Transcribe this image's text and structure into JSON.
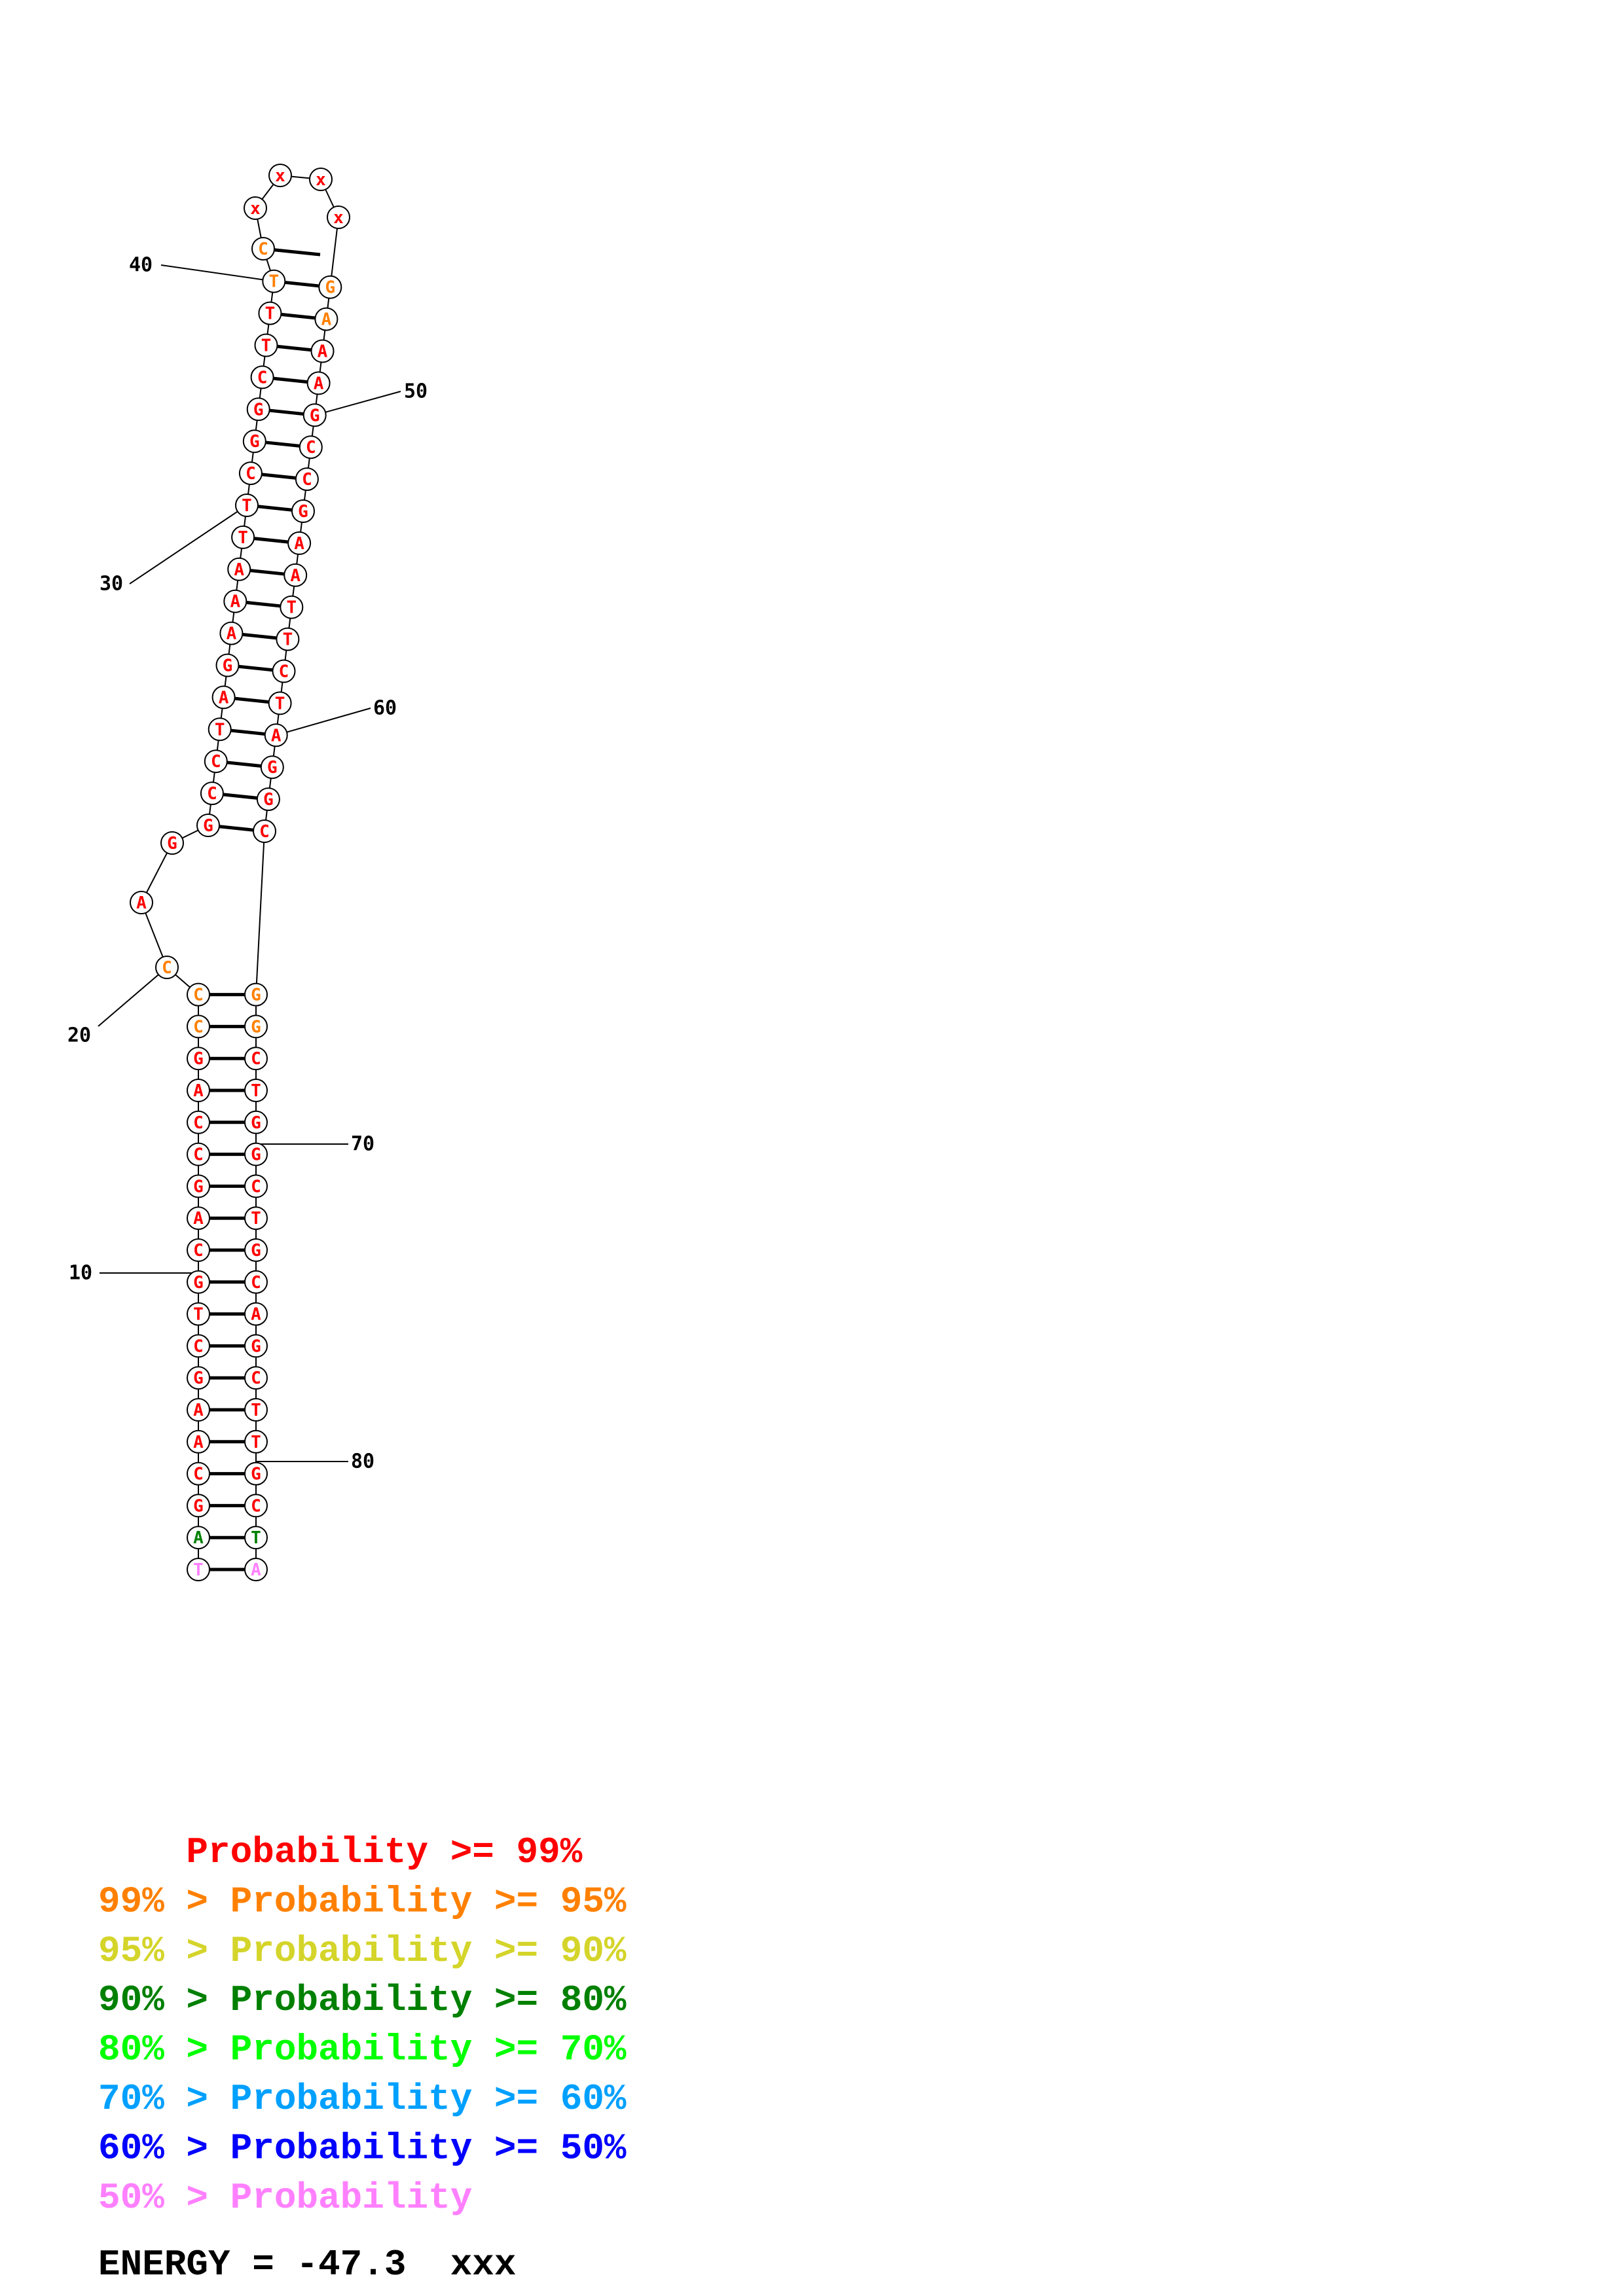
{
  "structure": {
    "left_arm": [
      "T",
      "A",
      "G",
      "C",
      "A",
      "A",
      "G",
      "C",
      "T",
      "G",
      "C",
      "A",
      "G",
      "C",
      "C",
      "A",
      "G",
      "C",
      "C"
    ],
    "left_colors": [
      "pink",
      "green",
      "red",
      "red",
      "red",
      "red",
      "red",
      "red",
      "red",
      "red",
      "red",
      "red",
      "red",
      "red",
      "red",
      "red",
      "red",
      "orange",
      "orange"
    ],
    "right_arm": [
      "A",
      "T",
      "C",
      "G",
      "T",
      "T",
      "C",
      "G",
      "A",
      "C",
      "G",
      "T",
      "C",
      "G",
      "G",
      "T",
      "C",
      "G",
      "G"
    ],
    "right_colors": [
      "pink",
      "green",
      "red",
      "red",
      "red",
      "red",
      "red",
      "red",
      "red",
      "red",
      "red",
      "red",
      "red",
      "red",
      "red",
      "red",
      "red",
      "orange",
      "orange"
    ],
    "loop_bases": [
      "C",
      "A",
      "G"
    ],
    "loop_colors": [
      "orange",
      "red",
      "red"
    ],
    "upper_left": [
      "G",
      "C",
      "C",
      "T",
      "A",
      "G",
      "A",
      "A",
      "A",
      "T",
      "T",
      "C",
      "G",
      "G",
      "C",
      "T",
      "T",
      "T"
    ],
    "upper_left_colors": [
      "red",
      "red",
      "red",
      "red",
      "red",
      "red",
      "red",
      "red",
      "red",
      "red",
      "red",
      "red",
      "red",
      "red",
      "red",
      "red",
      "red",
      "orange"
    ],
    "upper_right": [
      "C",
      "G",
      "G",
      "A",
      "T",
      "C",
      "T",
      "T",
      "A",
      "A",
      "G",
      "C",
      "C",
      "G",
      "A",
      "A",
      "A",
      "G"
    ],
    "upper_right_colors": [
      "red",
      "red",
      "red",
      "red",
      "red",
      "red",
      "red",
      "red",
      "red",
      "red",
      "red",
      "red",
      "red",
      "red",
      "red",
      "red",
      "orange",
      "orange"
    ],
    "hairpin": [
      "C",
      "x",
      "x",
      "x",
      "x"
    ],
    "hairpin_colors": [
      "orange",
      "red",
      "red",
      "red",
      "red"
    ]
  },
  "position_labels": [
    "10",
    "20",
    "30",
    "40",
    "50",
    "60",
    "70",
    "80"
  ],
  "colors": {
    "red": "#ff0000",
    "orange": "#ff8000",
    "yellow": "#d4d42a",
    "green": "#008000",
    "lime": "#00ff00",
    "cyan": "#00a0ff",
    "blue": "#0000ff",
    "pink": "#ff80ff"
  },
  "legend": [
    {
      "text": "    Probability >= 99%",
      "color": "red"
    },
    {
      "text": "99% > Probability >= 95%",
      "color": "orange"
    },
    {
      "text": "95% > Probability >= 90%",
      "color": "yellow"
    },
    {
      "text": "90% > Probability >= 80%",
      "color": "green"
    },
    {
      "text": "80% > Probability >= 70%",
      "color": "lime"
    },
    {
      "text": "70% > Probability >= 60%",
      "color": "cyan"
    },
    {
      "text": "60% > Probability >= 50%",
      "color": "blue"
    },
    {
      "text": "50% > Probability",
      "color": "pink"
    }
  ],
  "energy": "ENERGY = -47.3  xxx"
}
